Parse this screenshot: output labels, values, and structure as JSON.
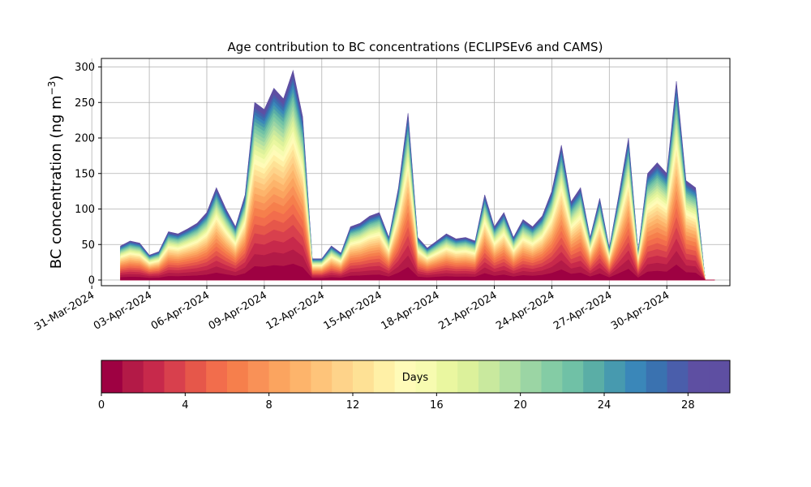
{
  "chart_data": {
    "type": "area",
    "stacked": true,
    "title": "Age contribution to BC concentrations (ECLIPSEv6 and CAMS)",
    "ylabel_main": "BC concentration (ng m",
    "ylabel_sup": "−3",
    "ylabel_end": ")",
    "xlabel": "",
    "ylim": [
      -8,
      312
    ],
    "yticks": [
      0,
      50,
      100,
      150,
      200,
      250,
      300
    ],
    "xlim": [
      "2024-03-31T12:00",
      "2024-05-03T07:00"
    ],
    "xticks": [
      "31-Mar-2024",
      "03-Apr-2024",
      "06-Apr-2024",
      "09-Apr-2024",
      "12-Apr-2024",
      "15-Apr-2024",
      "18-Apr-2024",
      "21-Apr-2024",
      "24-Apr-2024",
      "27-Apr-2024",
      "30-Apr-2024"
    ],
    "grid": true,
    "colormap": "Spectral",
    "colorbar": {
      "label": "Days",
      "range": [
        0,
        30
      ],
      "ticks": [
        0,
        4,
        8,
        12,
        16,
        20,
        24,
        28
      ],
      "orientation": "horizontal",
      "placement": "bottom",
      "colors": [
        "#9e0142",
        "#b31a47",
        "#c7294b",
        "#d8404d",
        "#e6574a",
        "#f26d4c",
        "#f67f4c",
        "#f99157",
        "#fba45f",
        "#fdb46b",
        "#fec47a",
        "#fed38a",
        "#fee195",
        "#fff0a6",
        "#fffbb8",
        "#f7fbb0",
        "#eaf7a0",
        "#dcf19b",
        "#c9e99e",
        "#b2e0a2",
        "#9bd5a4",
        "#84cca5",
        "#70c1a6",
        "#5aaea6",
        "#479aaf",
        "#3a87b9",
        "#3a72b0",
        "#4a5eab",
        "#5e4fa2",
        "#5e4fa2"
      ]
    },
    "total": {
      "x": [
        "2024-04-01T12:00",
        "2024-04-02T00:00",
        "2024-04-02T12:00",
        "2024-04-03T00:00",
        "2024-04-03T12:00",
        "2024-04-04T00:00",
        "2024-04-04T12:00",
        "2024-04-05T00:00",
        "2024-04-05T12:00",
        "2024-04-06T00:00",
        "2024-04-06T12:00",
        "2024-04-07T00:00",
        "2024-04-07T12:00",
        "2024-04-08T00:00",
        "2024-04-08T12:00",
        "2024-04-09T00:00",
        "2024-04-09T12:00",
        "2024-04-10T00:00",
        "2024-04-10T12:00",
        "2024-04-11T00:00",
        "2024-04-11T12:00",
        "2024-04-12T00:00",
        "2024-04-12T12:00",
        "2024-04-13T00:00",
        "2024-04-13T12:00",
        "2024-04-14T00:00",
        "2024-04-14T12:00",
        "2024-04-15T00:00",
        "2024-04-15T12:00",
        "2024-04-16T00:00",
        "2024-04-16T12:00",
        "2024-04-17T00:00",
        "2024-04-17T12:00",
        "2024-04-18T00:00",
        "2024-04-18T12:00",
        "2024-04-19T00:00",
        "2024-04-19T12:00",
        "2024-04-20T00:00",
        "2024-04-20T12:00",
        "2024-04-21T00:00",
        "2024-04-21T12:00",
        "2024-04-22T00:00",
        "2024-04-22T12:00",
        "2024-04-23T00:00",
        "2024-04-23T12:00",
        "2024-04-24T00:00",
        "2024-04-24T12:00",
        "2024-04-25T00:00",
        "2024-04-25T12:00",
        "2024-04-26T00:00",
        "2024-04-26T12:00",
        "2024-04-27T00:00",
        "2024-04-27T12:00",
        "2024-04-28T00:00",
        "2024-04-28T12:00",
        "2024-04-29T00:00",
        "2024-04-29T12:00",
        "2024-04-30T00:00",
        "2024-04-30T12:00",
        "2024-05-01T00:00",
        "2024-05-01T12:00",
        "2024-05-02T00:00",
        "2024-05-02T12:00"
      ],
      "y": [
        48,
        55,
        52,
        35,
        40,
        68,
        65,
        72,
        80,
        95,
        130,
        100,
        75,
        120,
        250,
        240,
        270,
        255,
        295,
        230,
        30,
        30,
        48,
        38,
        75,
        80,
        90,
        95,
        60,
        130,
        235,
        60,
        45,
        55,
        65,
        58,
        60,
        55,
        120,
        75,
        95,
        60,
        85,
        75,
        90,
        125,
        190,
        110,
        130,
        60,
        115,
        45,
        120,
        200,
        40,
        150,
        165,
        150,
        280,
        140,
        130,
        0,
        0
      ]
    }
  }
}
